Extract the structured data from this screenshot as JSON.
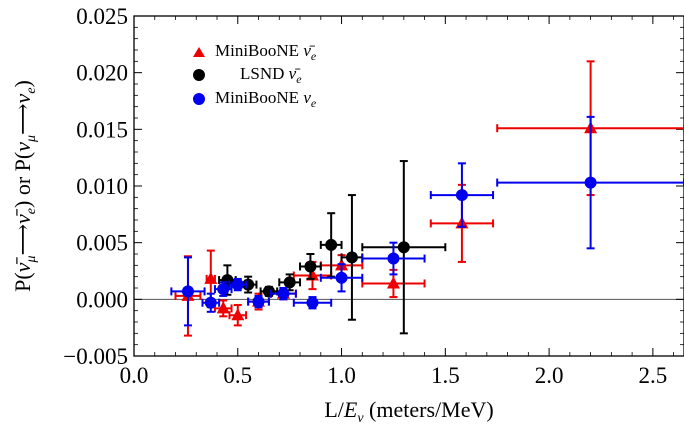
{
  "chart_data": {
    "type": "scatter",
    "xlabel": "L/Eν (meters/MeV)",
    "ylabel": "P(ν̄μ ⟶ ν̄e) or P(νμ ⟶ νe)",
    "xlim": [
      0.0,
      2.65
    ],
    "ylim": [
      -0.005,
      0.025
    ],
    "x_ticks": [
      0.0,
      0.5,
      1.0,
      1.5,
      2.0,
      2.5
    ],
    "x_tick_labels": [
      "0.0",
      "0.5",
      "1.0",
      "1.5",
      "2.0",
      "2.5"
    ],
    "y_ticks": [
      -0.005,
      0.0,
      0.005,
      0.01,
      0.015,
      0.02,
      0.025
    ],
    "y_tick_labels": [
      "−0.005",
      "0.000",
      "0.005",
      "0.010",
      "0.015",
      "0.020",
      "0.025"
    ],
    "zero_line": true,
    "legend_position": "top-left",
    "series": [
      {
        "name": "MiniBooNE ν̄e",
        "color": "#ee0000",
        "marker": "triangle",
        "points": [
          {
            "x": 0.26,
            "y": 0.0003,
            "xerr": [
              0.06,
              0.06
            ],
            "yerr": [
              0.0035,
              0.0035
            ]
          },
          {
            "x": 0.37,
            "y": 0.0018,
            "xerr": [
              0.02,
              0.02
            ],
            "yerr": [
              0.0025,
              0.0025
            ]
          },
          {
            "x": 0.43,
            "y": -0.0008,
            "xerr": [
              0.04,
              0.04
            ],
            "yerr": [
              0.0007,
              0.0007
            ]
          },
          {
            "x": 0.5,
            "y": -0.0014,
            "xerr": [
              0.04,
              0.04
            ],
            "yerr": [
              0.0009,
              0.0009
            ]
          },
          {
            "x": 0.6,
            "y": -0.0002,
            "xerr": [
              0.05,
              0.05
            ],
            "yerr": [
              0.0007,
              0.0007
            ]
          },
          {
            "x": 0.72,
            "y": 0.0005,
            "xerr": [
              0.06,
              0.06
            ],
            "yerr": [
              0.0005,
              0.0005
            ]
          },
          {
            "x": 0.86,
            "y": 0.0021,
            "xerr": [
              0.09,
              0.09
            ],
            "yerr": [
              0.0012,
              0.0012
            ]
          },
          {
            "x": 1.0,
            "y": 0.003,
            "xerr": [
              0.1,
              0.1
            ],
            "yerr": [
              0.0009,
              0.0009
            ]
          },
          {
            "x": 1.25,
            "y": 0.0014,
            "xerr": [
              0.15,
              0.15
            ],
            "yerr": [
              0.0012,
              0.0012
            ]
          },
          {
            "x": 1.58,
            "y": 0.0067,
            "xerr": [
              0.15,
              0.15
            ],
            "yerr": [
              0.0034,
              0.0034
            ]
          },
          {
            "x": 2.2,
            "y": 0.0151,
            "xerr": [
              0.45,
              0.45
            ],
            "yerr": [
              0.0059,
              0.0059
            ]
          }
        ]
      },
      {
        "name": "LSND ν̄e",
        "color": "#000000",
        "marker": "circle",
        "points": [
          {
            "x": 0.45,
            "y": 0.0017,
            "xerr": [
              0.04,
              0.04
            ],
            "yerr": [
              0.0013,
              0.0013
            ]
          },
          {
            "x": 0.55,
            "y": 0.0013,
            "xerr": [
              0.04,
              0.04
            ],
            "yerr": [
              0.0007,
              0.0007
            ]
          },
          {
            "x": 0.65,
            "y": 0.0007,
            "xerr": [
              0.04,
              0.04
            ],
            "yerr": [
              0.0004,
              0.0004
            ]
          },
          {
            "x": 0.75,
            "y": 0.0015,
            "xerr": [
              0.05,
              0.05
            ],
            "yerr": [
              0.0007,
              0.0007
            ]
          },
          {
            "x": 0.85,
            "y": 0.0029,
            "xerr": [
              0.05,
              0.05
            ],
            "yerr": [
              0.0011,
              0.0011
            ]
          },
          {
            "x": 0.95,
            "y": 0.0048,
            "xerr": [
              0.05,
              0.05
            ],
            "yerr": [
              0.0028,
              0.0028
            ]
          },
          {
            "x": 1.05,
            "y": 0.0037,
            "xerr": [
              0.05,
              0.05
            ],
            "yerr": [
              0.0055,
              0.0055
            ]
          },
          {
            "x": 1.3,
            "y": 0.0046,
            "xerr": [
              0.2,
              0.2
            ],
            "yerr": [
              0.0076,
              0.0076
            ]
          }
        ]
      },
      {
        "name": "MiniBooNE νe",
        "color": "#0000ee",
        "marker": "circle",
        "points": [
          {
            "x": 0.26,
            "y": 0.0007,
            "xerr": [
              0.08,
              0.08
            ],
            "yerr": [
              0.003,
              0.003
            ]
          },
          {
            "x": 0.37,
            "y": -0.0003,
            "xerr": [
              0.04,
              0.04
            ],
            "yerr": [
              0.0008,
              0.0008
            ]
          },
          {
            "x": 0.43,
            "y": 0.0009,
            "xerr": [
              0.04,
              0.04
            ],
            "yerr": [
              0.0006,
              0.0006
            ]
          },
          {
            "x": 0.5,
            "y": 0.0013,
            "xerr": [
              0.04,
              0.04
            ],
            "yerr": [
              0.0005,
              0.0005
            ]
          },
          {
            "x": 0.6,
            "y": -0.0002,
            "xerr": [
              0.05,
              0.05
            ],
            "yerr": [
              0.0005,
              0.0005
            ]
          },
          {
            "x": 0.72,
            "y": 0.0005,
            "xerr": [
              0.06,
              0.06
            ],
            "yerr": [
              0.0005,
              0.0005
            ]
          },
          {
            "x": 0.86,
            "y": -0.0003,
            "xerr": [
              0.09,
              0.09
            ],
            "yerr": [
              0.0005,
              0.0005
            ]
          },
          {
            "x": 1.0,
            "y": 0.0019,
            "xerr": [
              0.1,
              0.1
            ],
            "yerr": [
              0.0012,
              0.0012
            ]
          },
          {
            "x": 1.25,
            "y": 0.0036,
            "xerr": [
              0.15,
              0.15
            ],
            "yerr": [
              0.0014,
              0.0014
            ]
          },
          {
            "x": 1.58,
            "y": 0.0092,
            "xerr": [
              0.15,
              0.15
            ],
            "yerr": [
              0.0028,
              0.0028
            ]
          },
          {
            "x": 2.2,
            "y": 0.0103,
            "xerr": [
              0.45,
              0.45
            ],
            "yerr": [
              0.0058,
              0.0058
            ]
          }
        ]
      }
    ]
  }
}
